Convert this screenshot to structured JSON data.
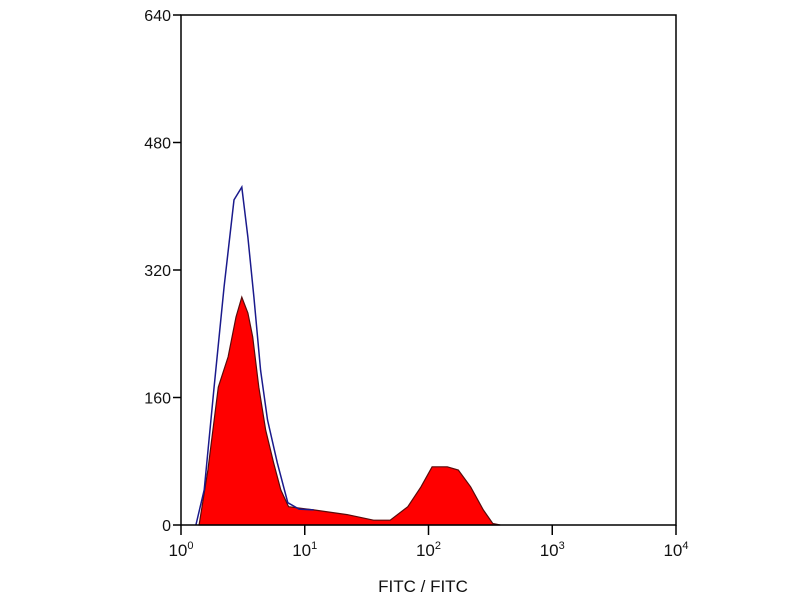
{
  "chart_data": {
    "type": "area",
    "title": "",
    "xlabel": "FITC / FITC",
    "ylabel": "",
    "x_scale": "log",
    "xlim": [
      1,
      10000
    ],
    "ylim": [
      0,
      640
    ],
    "grid": false,
    "x_ticks": [
      {
        "value": 1,
        "base": "10",
        "exp": "0"
      },
      {
        "value": 10,
        "base": "10",
        "exp": "1"
      },
      {
        "value": 100,
        "base": "10",
        "exp": "2"
      },
      {
        "value": 1000,
        "base": "10",
        "exp": "3"
      },
      {
        "value": 10000,
        "base": "10",
        "exp": "4"
      }
    ],
    "y_ticks": [
      {
        "value": 0,
        "label": "0"
      },
      {
        "value": 160,
        "label": "160"
      },
      {
        "value": 320,
        "label": "320"
      },
      {
        "value": 480,
        "label": "480"
      },
      {
        "value": 640,
        "label": "640"
      }
    ],
    "series": [
      {
        "style": "outline",
        "color": "#1a1a8c",
        "x": [
          1.32,
          1.54,
          1.85,
          2.23,
          2.68,
          3.1,
          3.47,
          3.88,
          4.4,
          5.0,
          6.0,
          7.3,
          9.0,
          11.8
        ],
        "y": [
          0,
          44,
          173,
          299,
          408,
          424,
          361,
          286,
          194,
          132,
          78,
          28,
          20,
          19
        ]
      },
      {
        "style": "filled",
        "color": "#ff0000",
        "x": [
          1.4,
          1.65,
          2.0,
          2.4,
          2.78,
          3.1,
          3.47,
          3.8,
          4.25,
          4.84,
          5.6,
          6.4,
          7.4,
          11.8,
          22,
          36,
          49,
          68,
          87,
          107,
          142,
          174,
          219,
          277,
          330,
          380
        ],
        "y": [
          0,
          69,
          173,
          211,
          261,
          286,
          266,
          236,
          173,
          119,
          78,
          44,
          23,
          19,
          13,
          6,
          6,
          23,
          48,
          73,
          73,
          69,
          48,
          19,
          2,
          0
        ]
      }
    ]
  }
}
